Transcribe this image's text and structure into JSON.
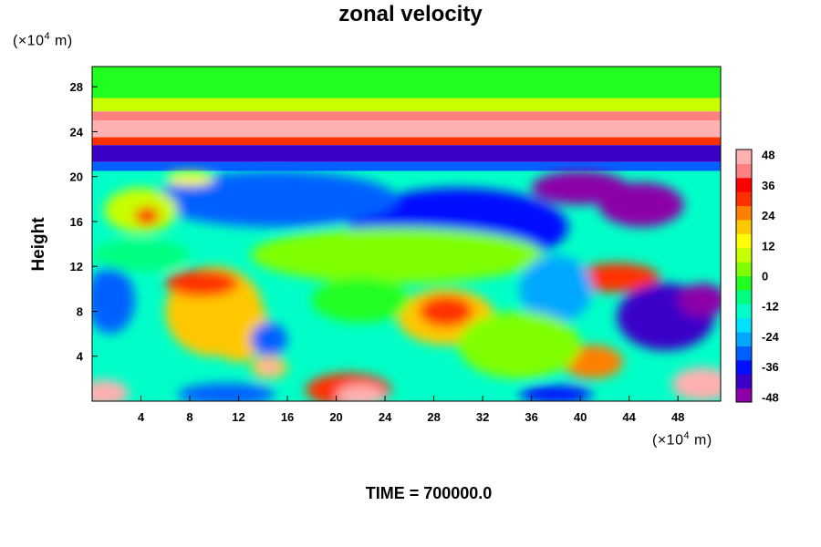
{
  "chart_data": {
    "type": "heatmap",
    "title": "zonal velocity",
    "ylabel": "Height",
    "xlabel": "",
    "x_unit": {
      "prefix": "(×10",
      "exp": "4",
      "suffix": " m)"
    },
    "y_unit": {
      "prefix": "(×10",
      "exp": "4",
      "suffix": " m)"
    },
    "xlim": [
      0,
      51.5
    ],
    "ylim": [
      0,
      29.8
    ],
    "x_ticks": [
      4,
      8,
      12,
      16,
      20,
      24,
      28,
      32,
      36,
      40,
      44,
      48
    ],
    "y_ticks": [
      4,
      8,
      12,
      16,
      20,
      24,
      28
    ],
    "colorbar": {
      "range": [
        -50,
        50
      ],
      "ticks": [
        48,
        36,
        24,
        12,
        0,
        -12,
        -24,
        -36,
        -48
      ],
      "colors": [
        "#8c00a8",
        "#3a00c8",
        "#0010ff",
        "#0060ff",
        "#00a8ff",
        "#00e0ff",
        "#00ffc8",
        "#00ff80",
        "#20ff20",
        "#80ff00",
        "#c8ff00",
        "#ffff00",
        "#ffc800",
        "#ff8000",
        "#ff3000",
        "#ff0000",
        "#ff8080",
        "#ffb0b0"
      ]
    },
    "bands": [
      {
        "y0": 27.0,
        "y1": 29.8,
        "value": -5
      },
      {
        "y0": 25.8,
        "y1": 27.0,
        "value": 10
      },
      {
        "y0": 25.0,
        "y1": 25.8,
        "value": 40
      },
      {
        "y0": 23.5,
        "y1": 25.0,
        "value": 50
      },
      {
        "y0": 22.8,
        "y1": 23.5,
        "value": 30
      },
      {
        "y0": 21.3,
        "y1": 22.8,
        "value": -42
      },
      {
        "y0": 20.5,
        "y1": 21.3,
        "value": -30
      },
      {
        "y0": 0,
        "y1": 20.5,
        "value": -15
      }
    ],
    "blobs": [
      {
        "x": 30,
        "y": 15.5,
        "rx": 9,
        "ry": 3.5,
        "value": -36
      },
      {
        "x": 45,
        "y": 17.5,
        "rx": 3.5,
        "ry": 2,
        "value": -45
      },
      {
        "x": 40,
        "y": 19,
        "rx": 4,
        "ry": 1.5,
        "value": -45
      },
      {
        "x": 15,
        "y": 18,
        "rx": 10,
        "ry": 2.5,
        "value": -28
      },
      {
        "x": 4,
        "y": 17,
        "rx": 3,
        "ry": 2,
        "value": 10
      },
      {
        "x": 4.5,
        "y": 16.5,
        "rx": 1,
        "ry": 0.8,
        "value": 35
      },
      {
        "x": 8,
        "y": 19.8,
        "rx": 2,
        "ry": 0.6,
        "value": 15
      },
      {
        "x": 25,
        "y": 13,
        "rx": 12,
        "ry": 2.5,
        "value": 0
      },
      {
        "x": 10,
        "y": 8,
        "rx": 4,
        "ry": 4,
        "value": 20
      },
      {
        "x": 9,
        "y": 10.5,
        "rx": 3,
        "ry": 1.2,
        "value": 28
      },
      {
        "x": 12,
        "y": 6.5,
        "rx": 2.5,
        "ry": 3,
        "value": 18
      },
      {
        "x": 29,
        "y": 7.5,
        "rx": 4,
        "ry": 2.5,
        "value": 22
      },
      {
        "x": 29,
        "y": 8,
        "rx": 2.2,
        "ry": 1.4,
        "value": 30
      },
      {
        "x": 43,
        "y": 11,
        "rx": 3.5,
        "ry": 1.3,
        "value": 28
      },
      {
        "x": 47,
        "y": 7.5,
        "rx": 4,
        "ry": 3,
        "value": -40
      },
      {
        "x": 50,
        "y": 9,
        "rx": 2,
        "ry": 1.5,
        "value": -46
      },
      {
        "x": 1.5,
        "y": 9,
        "rx": 2,
        "ry": 3,
        "value": -28
      },
      {
        "x": 14.5,
        "y": 3,
        "rx": 1.5,
        "ry": 1,
        "value": 20
      },
      {
        "x": 14.5,
        "y": 3,
        "rx": 0.8,
        "ry": 0.5,
        "value": 45
      },
      {
        "x": 14.5,
        "y": 5.5,
        "rx": 1.5,
        "ry": 1.5,
        "value": -30
      },
      {
        "x": 21,
        "y": 1,
        "rx": 3.5,
        "ry": 1.5,
        "value": 30
      },
      {
        "x": 22,
        "y": 0.5,
        "rx": 2,
        "ry": 1,
        "value": 45
      },
      {
        "x": 1,
        "y": 0.7,
        "rx": 2,
        "ry": 1.2,
        "value": 48
      },
      {
        "x": 11,
        "y": 0.6,
        "rx": 4,
        "ry": 1,
        "value": -30
      },
      {
        "x": 41,
        "y": 3.5,
        "rx": 2.5,
        "ry": 1.5,
        "value": 25
      },
      {
        "x": 38,
        "y": 0.6,
        "rx": 3,
        "ry": 0.8,
        "value": -38
      },
      {
        "x": 50,
        "y": 1.5,
        "rx": 2.5,
        "ry": 1.5,
        "value": 45
      },
      {
        "x": 38,
        "y": 10,
        "rx": 3,
        "ry": 3,
        "value": -25
      },
      {
        "x": 4,
        "y": 13,
        "rx": 4,
        "ry": 1.5,
        "value": -10
      },
      {
        "x": 35,
        "y": 5,
        "rx": 5,
        "ry": 3,
        "value": 5
      },
      {
        "x": 22,
        "y": 9,
        "rx": 4,
        "ry": 2,
        "value": -5
      }
    ]
  },
  "footer": {
    "time_label": "TIME = 700000.0"
  }
}
